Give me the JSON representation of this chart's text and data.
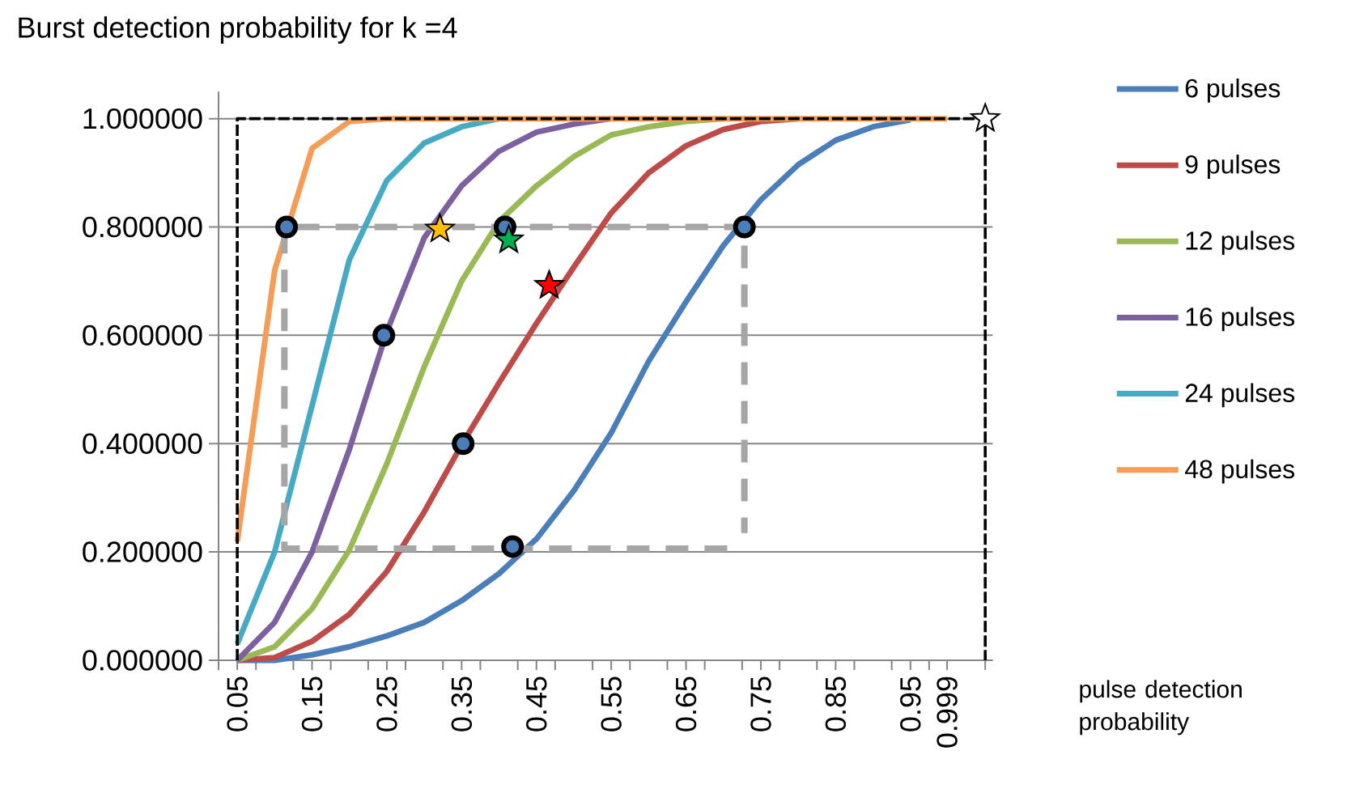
{
  "chart_data": {
    "type": "line",
    "title": "Burst detection probability for k =4",
    "xlabel": "pulse detection probability",
    "x": [
      0.05,
      0.1,
      0.15,
      0.2,
      0.25,
      0.3,
      0.35,
      0.4,
      0.45,
      0.5,
      0.55,
      0.6,
      0.65,
      0.7,
      0.75,
      0.8,
      0.85,
      0.9,
      0.95,
      0.999
    ],
    "xlim": [
      0.025,
      1.06
    ],
    "xticks": [
      0.05,
      0.15,
      0.25,
      0.35,
      0.45,
      0.55,
      0.65,
      0.75,
      0.85,
      0.95,
      0.999,
      {
        "value": 0.025,
        "label": null
      },
      {
        "value": 0.075,
        "label": null
      },
      {
        "value": 0.125,
        "label": null
      },
      {
        "value": 0.175,
        "label": null
      },
      {
        "value": 0.225,
        "label": null
      },
      {
        "value": 0.275,
        "label": null
      },
      {
        "value": 0.325,
        "label": null
      },
      {
        "value": 0.375,
        "label": null
      },
      {
        "value": 0.425,
        "label": null
      },
      {
        "value": 0.475,
        "label": null
      },
      {
        "value": 0.525,
        "label": null
      },
      {
        "value": 0.575,
        "label": null
      },
      {
        "value": 0.625,
        "label": null
      },
      {
        "value": 0.675,
        "label": null
      },
      {
        "value": 0.725,
        "label": null
      },
      {
        "value": 0.775,
        "label": null
      },
      {
        "value": 0.825,
        "label": null
      },
      {
        "value": 0.875,
        "label": null
      },
      {
        "value": 0.925,
        "label": null
      },
      {
        "value": 0.975,
        "label": null
      },
      {
        "value": 1.05,
        "label": null
      }
    ],
    "ylim": [
      0,
      1.05
    ],
    "yticks": [
      {
        "value": 0,
        "label": "0.000000"
      },
      {
        "value": 0.2,
        "label": "0.200000"
      },
      {
        "value": 0.4,
        "label": "0.400000"
      },
      {
        "value": 0.6,
        "label": "0.600000"
      },
      {
        "value": 0.8,
        "label": "0.800000"
      },
      {
        "value": 1.0,
        "label": "1.000000"
      }
    ],
    "grid": "y",
    "legend": "right",
    "marker": "none",
    "series": [
      {
        "name": "6 pulses",
        "color": "#4a7ebb",
        "values": [
          0,
          0,
          0.01,
          0.025,
          0.045,
          0.07,
          0.11,
          0.16,
          0.224,
          0.313,
          0.42,
          0.552,
          0.662,
          0.766,
          0.85,
          0.915,
          0.96,
          0.985,
          0.998,
          null
        ]
      },
      {
        "name": "9 pulses",
        "color": "#be4b48",
        "values": [
          0,
          0.005,
          0.035,
          0.085,
          0.164,
          0.274,
          0.398,
          0.512,
          0.622,
          0.726,
          0.826,
          0.9,
          0.95,
          0.98,
          0.995,
          1.0,
          null,
          null,
          null,
          null
        ]
      },
      {
        "name": "12 pulses",
        "color": "#98b954",
        "values": [
          0,
          0.025,
          0.095,
          0.204,
          0.363,
          0.542,
          0.7,
          0.81,
          0.876,
          0.93,
          0.97,
          0.985,
          0.995,
          1.0,
          null,
          null,
          null,
          null,
          null,
          null
        ]
      },
      {
        "name": "16 pulses",
        "color": "#7d60a0",
        "values": [
          0,
          0.07,
          0.2,
          0.39,
          0.607,
          0.78,
          0.876,
          0.94,
          0.975,
          0.99,
          1.0,
          null,
          null,
          null,
          null,
          null,
          null,
          null,
          null,
          null
        ]
      },
      {
        "name": "24 pulses",
        "color": "#46aac5",
        "values": [
          0.03,
          0.2,
          0.47,
          0.74,
          0.886,
          0.955,
          0.985,
          1.0,
          null,
          null,
          null,
          null,
          null,
          null,
          null,
          null,
          null,
          null,
          null,
          null
        ]
      },
      {
        "name": "48 pulses",
        "color": "#f59d56",
        "values": [
          0.219,
          0.72,
          0.945,
          0.995,
          1.0,
          1.0,
          1.0,
          1.0,
          1.0,
          1.0,
          1.0,
          1.0,
          1.0,
          1.0,
          1.0,
          1.0,
          1.0,
          1.0,
          1.0,
          1.0
        ]
      },
      {
        "type": "line",
        "color": "#a6a6a6",
        "line_style": "dashed",
        "x": [
          0.705,
          0.113,
          0.113,
          0.728,
          0.728
        ],
        "values": [
          0.206,
          0.206,
          0.8,
          0.8,
          0.235
        ]
      },
      {
        "type": "line",
        "color": "#000000",
        "line_style": "dashed",
        "x": [
          0.05,
          0.05,
          1.05,
          1.05
        ],
        "values": [
          0,
          1.0,
          1.0,
          0
        ]
      },
      {
        "type": "scatter",
        "color": "#4a7ebb",
        "marker": "circle",
        "x": [
          0.116,
          0.246,
          0.352,
          0.408,
          0.418,
          0.728
        ],
        "values": [
          0.8,
          0.6,
          0.4,
          0.8,
          0.21,
          0.8
        ]
      },
      {
        "type": "scatter",
        "marker": "star",
        "colors": [
          "#ffc000",
          "#00b050",
          "#ff0000",
          "#ffffff"
        ],
        "x": [
          0.321,
          0.413,
          0.467,
          1.05
        ],
        "values": [
          0.796,
          0.776,
          0.692,
          1.0
        ]
      }
    ]
  }
}
